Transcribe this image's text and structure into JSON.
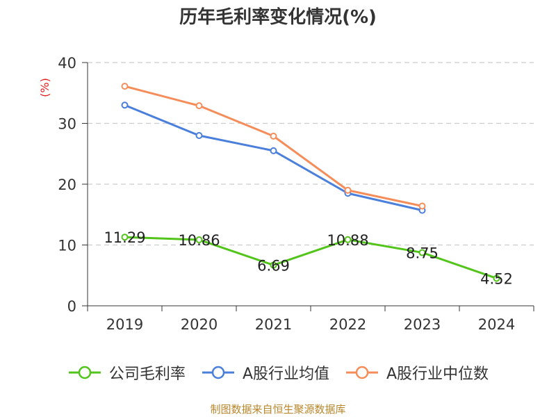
{
  "chart_data": {
    "type": "line",
    "title": "历年毛利率变化情况(%)",
    "ylabel": "(%)",
    "xlabel": "",
    "categories": [
      "2019",
      "2020",
      "2021",
      "2022",
      "2023",
      "2024"
    ],
    "ylim": [
      0,
      40
    ],
    "yticks": [
      0,
      10,
      20,
      30,
      40
    ],
    "grid": true,
    "legend_position": "bottom",
    "series": [
      {
        "name": "公司毛利率",
        "color": "#52c41a",
        "values": [
          11.29,
          10.86,
          6.69,
          10.88,
          8.75,
          4.52
        ],
        "labels": [
          "11.29",
          "10.86",
          "6.69",
          "10.88",
          "8.75",
          "4.52"
        ]
      },
      {
        "name": "A股行业均值",
        "color": "#4a7fdc",
        "values": [
          33.0,
          28.0,
          25.5,
          18.5,
          15.7,
          null
        ]
      },
      {
        "name": "A股行业中位数",
        "color": "#f58d5a",
        "values": [
          36.1,
          32.9,
          27.9,
          19.0,
          16.4,
          null
        ]
      }
    ]
  },
  "footer": "制图数据来自恒生聚源数据库"
}
